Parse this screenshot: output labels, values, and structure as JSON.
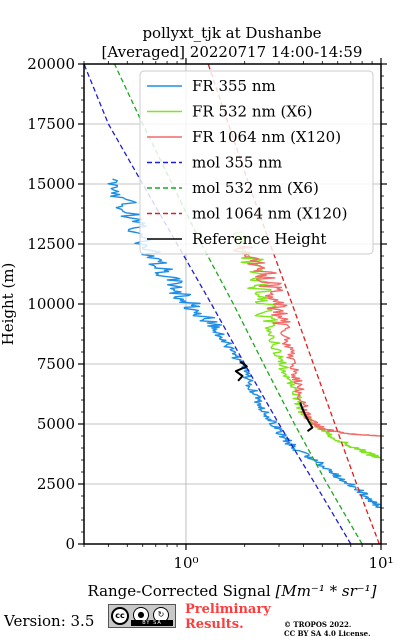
{
  "title": {
    "line1": "pollyxt_tjk at Dushanbe",
    "line2": "[Averaged] 20220717 14:00-14:59"
  },
  "chart_data": {
    "type": "line",
    "xlabel_text": "Range-Corrected Signal ",
    "xlabel_unit": "[Mm⁻¹ * sr⁻¹]",
    "ylabel": "Height (m)",
    "x_scale": "log",
    "xlim": [
      0.3,
      10
    ],
    "ylim": [
      0,
      20000
    ],
    "x_ticks": [
      {
        "value": 1,
        "label": "10⁰"
      },
      {
        "value": 10,
        "label": "10¹"
      }
    ],
    "y_ticks": [
      {
        "value": 0,
        "label": "0"
      },
      {
        "value": 2500,
        "label": "2500"
      },
      {
        "value": 5000,
        "label": "5000"
      },
      {
        "value": 7500,
        "label": "7500"
      },
      {
        "value": 10000,
        "label": "10000"
      },
      {
        "value": 12500,
        "label": "12500"
      },
      {
        "value": 15000,
        "label": "15000"
      },
      {
        "value": 17500,
        "label": "17500"
      },
      {
        "value": 20000,
        "label": "20000"
      }
    ],
    "grid": true,
    "legend_position": "top-right",
    "series": [
      {
        "name": "FR 355 nm",
        "color": "#1f8fe6",
        "style": "solid",
        "noisy": true,
        "points": [
          [
            10,
            1500
          ],
          [
            9,
            1800
          ],
          [
            7.5,
            2300
          ],
          [
            6,
            2800
          ],
          [
            5,
            3300
          ],
          [
            4.3,
            3600
          ],
          [
            3.6,
            4000
          ],
          [
            3.2,
            4400
          ],
          [
            2.9,
            4900
          ],
          [
            2.6,
            5400
          ],
          [
            2.35,
            6000
          ],
          [
            2.15,
            6600
          ],
          [
            2.0,
            7200
          ],
          [
            1.8,
            7800
          ],
          [
            1.6,
            8400
          ],
          [
            1.4,
            9000
          ],
          [
            1.2,
            9600
          ],
          [
            1.0,
            10200
          ],
          [
            0.85,
            10900
          ],
          [
            0.72,
            11600
          ],
          [
            0.62,
            12400
          ],
          [
            0.55,
            13300
          ],
          [
            0.48,
            14300
          ],
          [
            0.42,
            15200
          ]
        ]
      },
      {
        "name": "FR 532 nm (X6)",
        "color": "#7ee61a",
        "style": "solid",
        "noisy": true,
        "points": [
          [
            10,
            3600
          ],
          [
            9,
            3700
          ],
          [
            8,
            3900
          ],
          [
            6.5,
            4200
          ],
          [
            5.3,
            4600
          ],
          [
            4.5,
            5000
          ],
          [
            4.0,
            5500
          ],
          [
            3.7,
            6100
          ],
          [
            3.4,
            6800
          ],
          [
            3.1,
            7500
          ],
          [
            2.9,
            8200
          ],
          [
            2.7,
            9000
          ],
          [
            2.55,
            9800
          ],
          [
            2.4,
            10600
          ],
          [
            2.25,
            11400
          ],
          [
            2.1,
            12200
          ],
          [
            1.95,
            13000
          ]
        ]
      },
      {
        "name": "FR 1064 nm (X120)",
        "color": "#f26a6a",
        "style": "solid",
        "noisy": true,
        "points": [
          [
            10,
            4500
          ],
          [
            8,
            4550
          ],
          [
            6.5,
            4600
          ],
          [
            5.0,
            4800
          ],
          [
            4.3,
            5200
          ],
          [
            4.0,
            5800
          ],
          [
            3.8,
            6500
          ],
          [
            3.6,
            7200
          ],
          [
            3.4,
            8000
          ],
          [
            3.2,
            8800
          ],
          [
            3.0,
            9600
          ],
          [
            2.8,
            10400
          ],
          [
            2.6,
            11200
          ],
          [
            2.3,
            11800
          ],
          [
            1.9,
            12400
          ]
        ]
      },
      {
        "name": "mol 355 nm",
        "color": "#1e1ed2",
        "style": "dashed",
        "noisy": false,
        "points": [
          [
            7.0,
            0
          ],
          [
            4.6,
            2500
          ],
          [
            3.0,
            5000
          ],
          [
            2.0,
            7500
          ],
          [
            1.35,
            10000
          ],
          [
            0.9,
            12500
          ],
          [
            0.6,
            15000
          ],
          [
            0.4,
            17500
          ],
          [
            0.27,
            20000
          ]
        ]
      },
      {
        "name": "mol 532 nm (X6)",
        "color": "#1ea81e",
        "style": "dashed",
        "noisy": false,
        "points": [
          [
            8.0,
            0
          ],
          [
            5.3,
            2500
          ],
          [
            3.6,
            5000
          ],
          [
            2.5,
            7500
          ],
          [
            1.75,
            10000
          ],
          [
            1.2,
            12500
          ],
          [
            0.85,
            15000
          ],
          [
            0.6,
            17500
          ],
          [
            0.43,
            20000
          ]
        ]
      },
      {
        "name": "mol 1064 nm (X120)",
        "color": "#e01e1e",
        "style": "dashed",
        "noisy": false,
        "points": [
          [
            9.8,
            0
          ],
          [
            7.5,
            2500
          ],
          [
            5.8,
            5000
          ],
          [
            4.5,
            7500
          ],
          [
            3.5,
            10000
          ],
          [
            2.7,
            12500
          ],
          [
            2.1,
            15000
          ],
          [
            1.65,
            17500
          ],
          [
            1.3,
            20000
          ]
        ]
      },
      {
        "name": "Reference Height",
        "color": "#000000",
        "style": "solid",
        "noisy": false,
        "segments": [
          [
            [
              1.85,
              6800
            ],
            [
              1.95,
              7000
            ],
            [
              1.8,
              7200
            ],
            [
              2.05,
              7400
            ],
            [
              1.9,
              7600
            ]
          ],
          [
            [
              4.2,
              4700
            ],
            [
              4.45,
              4850
            ],
            [
              4.3,
              5050
            ],
            [
              4.1,
              5350
            ],
            [
              3.95,
              5650
            ],
            [
              3.85,
              5900
            ]
          ]
        ]
      }
    ]
  },
  "footer": {
    "version_label": "Version: 3.5",
    "cc_symbol": "cc",
    "cc_by": "BY",
    "cc_sa": "SA",
    "preliminary_line1": "Preliminary",
    "preliminary_line2": "Results.",
    "copyright_line1": "© TROPOS 2022.",
    "copyright_line2": "CC BY SA 4.0 License."
  }
}
